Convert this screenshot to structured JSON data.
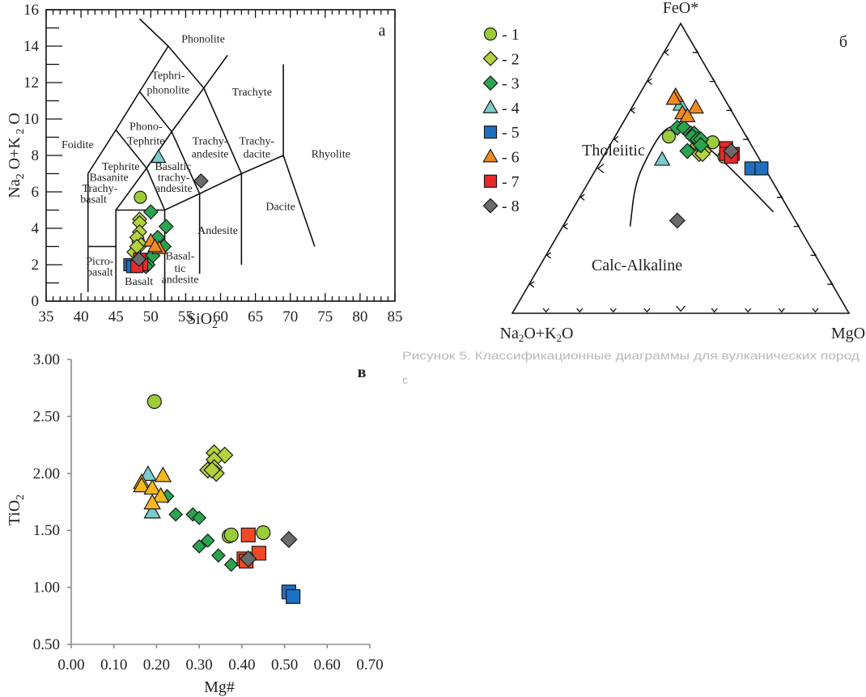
{
  "figure": {
    "caption_fragment_1": "Рисунок 5. Классификационные диаграммы для вулканических пород",
    "caption_fragment_2": "с"
  },
  "legend": {
    "items": [
      {
        "id": 1,
        "label": "- 1",
        "shape": "circle",
        "color": "#9ccc3a"
      },
      {
        "id": 2,
        "label": "- 2",
        "shape": "diamond",
        "color": "#b4d23e"
      },
      {
        "id": 3,
        "label": "- 3",
        "shape": "diamond",
        "color": "#2aa450"
      },
      {
        "id": 4,
        "label": "- 4",
        "shape": "triangle",
        "color": "#7ccccc"
      },
      {
        "id": 5,
        "label": "- 5",
        "shape": "square",
        "color": "#1e6fc0"
      },
      {
        "id": 6,
        "label": "- 6",
        "shape": "triangle",
        "color": "#f08a22"
      },
      {
        "id": 7,
        "label": "- 7",
        "shape": "square",
        "color": "#e8282a"
      },
      {
        "id": 8,
        "label": "- 8",
        "shape": "diamond",
        "color": "#6b6b6b"
      }
    ]
  },
  "chart_data": [
    {
      "id": "tas",
      "type": "scatter",
      "panel_label": "а",
      "title": "",
      "xlabel": "SiO2",
      "ylabel": "Na2O+K2O",
      "xlim": [
        35,
        85
      ],
      "ylim": [
        0,
        16
      ],
      "xticks": [
        35,
        40,
        45,
        50,
        55,
        60,
        65,
        70,
        75,
        80,
        85
      ],
      "yticks": [
        0,
        2,
        4,
        6,
        8,
        10,
        12,
        14,
        16
      ],
      "field_labels": [
        {
          "text": "Phonolite",
          "at": [
            57.5,
            14.2
          ]
        },
        {
          "text": "Tephri-",
          "at": [
            52.5,
            12.2
          ]
        },
        {
          "text": "phonolite",
          "at": [
            52.5,
            11.4
          ]
        },
        {
          "text": "Trachyte",
          "at": [
            64.5,
            11.3
          ]
        },
        {
          "text": "Phono-",
          "at": [
            49.3,
            9.4
          ]
        },
        {
          "text": "Tephrite",
          "at": [
            49.3,
            8.6
          ]
        },
        {
          "text": "Foidite",
          "at": [
            39.5,
            8.4
          ]
        },
        {
          "text": "Trachy-",
          "at": [
            58.5,
            8.6
          ]
        },
        {
          "text": "andesite",
          "at": [
            58.5,
            7.9
          ]
        },
        {
          "text": "Trachy-",
          "at": [
            65.2,
            8.6
          ]
        },
        {
          "text": "dacite",
          "at": [
            65.2,
            7.9
          ]
        },
        {
          "text": "Rhyolite",
          "at": [
            75.8,
            7.9
          ]
        },
        {
          "text": "Tephrite",
          "at": [
            45.7,
            7.2
          ]
        },
        {
          "text": "Basanite",
          "at": [
            44.0,
            6.6
          ]
        },
        {
          "text": "Basaltic",
          "at": [
            53.2,
            7.2
          ]
        },
        {
          "text": "trachy-",
          "at": [
            53.3,
            6.6
          ]
        },
        {
          "text": "andesite",
          "at": [
            53.3,
            6.0
          ]
        },
        {
          "text": "Trachy-",
          "at": [
            42.7,
            6.0
          ]
        },
        {
          "text": "basalt",
          "at": [
            41.8,
            5.4
          ]
        },
        {
          "text": "Dacite",
          "at": [
            68.6,
            5.0
          ]
        },
        {
          "text": "Andesite",
          "at": [
            59.6,
            3.7
          ]
        },
        {
          "text": "Picro-",
          "at": [
            42.7,
            2.0
          ]
        },
        {
          "text": "basalt",
          "at": [
            42.7,
            1.4
          ]
        },
        {
          "text": "Basalt",
          "at": [
            48.3,
            0.9
          ]
        },
        {
          "text": "Basal-",
          "at": [
            54.2,
            2.3
          ]
        },
        {
          "text": "tic",
          "at": [
            54.2,
            1.6
          ]
        },
        {
          "text": "andesite",
          "at": [
            54.2,
            1.0
          ]
        }
      ],
      "boundaries": [
        [
          [
            41,
            0.5
          ],
          [
            41,
            7
          ],
          [
            45,
            9.4
          ],
          [
            48.4,
            11.5
          ],
          [
            52.5,
            14
          ],
          [
            48.4,
            15.5
          ]
        ],
        [
          [
            41,
            3
          ],
          [
            45,
            3
          ]
        ],
        [
          [
            45,
            0
          ],
          [
            45,
            5
          ],
          [
            52,
            5
          ],
          [
            57,
            5.9
          ],
          [
            63,
            7
          ],
          [
            69,
            8
          ]
        ],
        [
          [
            45,
            5
          ],
          [
            49.4,
            7.3
          ],
          [
            53,
            9.3
          ],
          [
            57.6,
            11.7
          ],
          [
            61,
            13.5
          ]
        ],
        [
          [
            45,
            9.4
          ],
          [
            49.4,
            7.3
          ],
          [
            52,
            5
          ],
          [
            52,
            0
          ]
        ],
        [
          [
            48.4,
            11.5
          ],
          [
            53,
            9.3
          ],
          [
            57,
            5.9
          ],
          [
            57,
            1.5
          ]
        ],
        [
          [
            52.5,
            14
          ],
          [
            57.6,
            11.7
          ],
          [
            63,
            7
          ],
          [
            63,
            2
          ]
        ],
        [
          [
            69,
            13
          ],
          [
            69,
            8
          ],
          [
            73.5,
            3
          ]
        ]
      ],
      "series": [
        {
          "group": 1,
          "name": "1",
          "points": [
            [
              48.5,
              5.7
            ],
            [
              49.5,
              2.3
            ],
            [
              48.9,
              2.2
            ],
            [
              48.2,
              3.3
            ]
          ]
        },
        {
          "group": 2,
          "name": "2",
          "points": [
            [
              48.4,
              4.5
            ],
            [
              48.4,
              4.3
            ],
            [
              48.4,
              3.8
            ],
            [
              48.0,
              3.5
            ],
            [
              48.6,
              3.1
            ],
            [
              47.6,
              2.7
            ],
            [
              48.0,
              3.0
            ]
          ]
        },
        {
          "group": 3,
          "name": "3",
          "points": [
            [
              50.0,
              4.9
            ],
            [
              52.2,
              4.1
            ],
            [
              51.9,
              3.0
            ],
            [
              51.0,
              3.5
            ],
            [
              50.3,
              2.5
            ],
            [
              49.6,
              2.0
            ],
            [
              49.3,
              1.9
            ]
          ]
        },
        {
          "group": 4,
          "name": "4",
          "points": [
            [
              51.1,
              7.9
            ]
          ]
        },
        {
          "group": 5,
          "name": "5",
          "points": [
            [
              47.0,
              2.0
            ],
            [
              47.4,
              1.9
            ]
          ]
        },
        {
          "group": 6,
          "name": "6",
          "points": [
            [
              50.0,
              3.3
            ],
            [
              51.2,
              2.9
            ],
            [
              50.6,
              3.0
            ]
          ]
        },
        {
          "group": 7,
          "name": "7",
          "points": [
            [
              48.4,
              2.3
            ],
            [
              48.7,
              2.0
            ],
            [
              48.0,
              1.9
            ]
          ]
        },
        {
          "group": 8,
          "name": "8",
          "points": [
            [
              57.2,
              6.6
            ],
            [
              48.3,
              2.3
            ]
          ]
        }
      ]
    },
    {
      "id": "afm",
      "type": "scatter",
      "subtype": "ternary",
      "panel_label": "б",
      "apex_labels": {
        "top": "FeO*",
        "left": "Na2O+K2O",
        "right": "MgO"
      },
      "field_labels": [
        "Tholeiitic",
        "Calc-Alkaline"
      ],
      "tick_step": 10,
      "boundary_curve_ternary_FAM": [
        [
          30,
          50,
          20
        ],
        [
          45,
          41,
          14
        ],
        [
          55,
          32,
          13
        ],
        [
          62,
          25,
          13
        ],
        [
          65,
          20,
          15
        ],
        [
          63,
          17,
          20
        ],
        [
          57,
          13,
          30
        ],
        [
          47,
          9,
          44
        ],
        [
          35,
          5,
          60
        ]
      ],
      "series": [
        {
          "group": 1,
          "name": "1",
          "points_FAM": [
            [
              61,
              23,
              16
            ],
            [
              59,
              11,
              30
            ],
            [
              54,
              10,
              36
            ]
          ]
        },
        {
          "group": 2,
          "name": "2",
          "points_FAM": [
            [
              58,
              16,
              26
            ],
            [
              59,
              15,
              26
            ],
            [
              57,
              15,
              28
            ],
            [
              55,
              17,
              28
            ],
            [
              56,
              15,
              29
            ],
            [
              55,
              16,
              29
            ]
          ]
        },
        {
          "group": 3,
          "name": "3",
          "points_FAM": [
            [
              64,
              19,
              17
            ],
            [
              64,
              17,
              19
            ],
            [
              62,
              16,
              22
            ],
            [
              62,
              15,
              23
            ],
            [
              61,
              16,
              23
            ],
            [
              60,
              15,
              25
            ],
            [
              60,
              14,
              26
            ],
            [
              58,
              15,
              27
            ],
            [
              56,
              20,
              24
            ]
          ]
        },
        {
          "group": 4,
          "name": "4",
          "points_FAM": [
            [
              72,
              14,
              14
            ],
            [
              53,
              29,
              18
            ]
          ]
        },
        {
          "group": 5,
          "name": "5",
          "points_FAM": [
            [
              50,
              4,
              46
            ],
            [
              50,
              1,
              49
            ]
          ]
        },
        {
          "group": 6,
          "name": "6",
          "points_FAM": [
            [
              75,
              14,
              11
            ],
            [
              74,
              15,
              11
            ],
            [
              71,
              10,
              19
            ],
            [
              69,
              15,
              16
            ],
            [
              68,
              14,
              18
            ]
          ]
        },
        {
          "group": 7,
          "name": "7",
          "points_FAM": [
            [
              57,
              8,
              35
            ],
            [
              55,
              9,
              36
            ],
            [
              55,
              7,
              38
            ],
            [
              54,
              8,
              38
            ]
          ]
        },
        {
          "group": 8,
          "name": "8",
          "points_FAM": [
            [
              56,
              7,
              37
            ],
            [
              32,
              35,
              33
            ]
          ]
        }
      ]
    },
    {
      "id": "tio2-mg",
      "type": "scatter",
      "panel_label": "в",
      "xlabel": "Mg#",
      "ylabel": "TiO2",
      "xlim": [
        0,
        0.7
      ],
      "ylim": [
        0.5,
        3.0
      ],
      "xticks": [
        "0.00",
        "0.10",
        "0.20",
        "0.30",
        "0.40",
        "0.50",
        "0.60",
        "0.70"
      ],
      "yticks": [
        "0.50",
        "1.00",
        "1.50",
        "2.00",
        "2.50",
        "3.00"
      ],
      "grid": false,
      "series": [
        {
          "group": 1,
          "name": "1",
          "points": [
            [
              0.195,
              2.63
            ],
            [
              0.37,
              1.45
            ],
            [
              0.375,
              1.46
            ],
            [
              0.45,
              1.48
            ]
          ]
        },
        {
          "group": 2,
          "name": "2",
          "points": [
            [
              0.335,
              2.18
            ],
            [
              0.36,
              2.16
            ],
            [
              0.335,
              2.12
            ],
            [
              0.32,
              2.03
            ],
            [
              0.335,
              2.05
            ],
            [
              0.34,
              2.0
            ],
            [
              0.33,
              2.03
            ]
          ]
        },
        {
          "group": 3,
          "name": "3",
          "points": [
            [
              0.225,
              1.8
            ],
            [
              0.245,
              1.64
            ],
            [
              0.285,
              1.64
            ],
            [
              0.3,
              1.61
            ],
            [
              0.3,
              1.36
            ],
            [
              0.32,
              1.41
            ],
            [
              0.345,
              1.28
            ],
            [
              0.375,
              1.2
            ]
          ]
        },
        {
          "group": 4,
          "name": "4",
          "points": [
            [
              0.18,
              1.99
            ],
            [
              0.19,
              1.66
            ]
          ]
        },
        {
          "group": 5,
          "name": "5",
          "points": [
            [
              0.51,
              0.96
            ],
            [
              0.52,
              0.92
            ]
          ]
        },
        {
          "group": 6,
          "name": "6",
          "color_override": "#f5b81e",
          "points": [
            [
              0.165,
              1.92
            ],
            [
              0.165,
              1.89
            ],
            [
              0.19,
              1.87
            ],
            [
              0.215,
              1.98
            ],
            [
              0.21,
              1.8
            ],
            [
              0.19,
              1.74
            ]
          ]
        },
        {
          "group": 7,
          "name": "7",
          "color_override": "#ee4a25",
          "points": [
            [
              0.415,
              1.46
            ],
            [
              0.44,
              1.3
            ],
            [
              0.405,
              1.25
            ],
            [
              0.41,
              1.23
            ]
          ]
        },
        {
          "group": 8,
          "name": "8",
          "points": [
            [
              0.51,
              1.42
            ],
            [
              0.415,
              1.25
            ]
          ]
        }
      ]
    }
  ]
}
